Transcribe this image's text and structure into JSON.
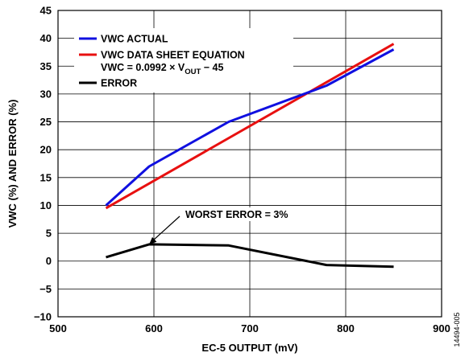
{
  "chart_data": {
    "type": "line",
    "xlabel": "EC-5 OUTPUT (mV)",
    "ylabel": "VWC (%) AND ERROR (%)",
    "xlim": [
      500,
      900
    ],
    "ylim": [
      -10,
      45
    ],
    "xticks": [
      500,
      600,
      700,
      800,
      900
    ],
    "yticks": [
      -10,
      -5,
      0,
      5,
      10,
      15,
      20,
      25,
      30,
      35,
      40,
      45
    ],
    "grid": true,
    "legend_placement": "top-left",
    "series": [
      {
        "name": "VWC ACTUAL",
        "color": "#1010e0",
        "x": [
          550,
          595,
          678,
          780,
          850
        ],
        "y": [
          10,
          17,
          25,
          31.5,
          38
        ]
      },
      {
        "name": "VWC DATA SHEET EQUATION",
        "subtitle_parts": [
          "VWC = 0.0992 × V",
          "OUT",
          " − 45"
        ],
        "color": "#e81010",
        "x": [
          550,
          850
        ],
        "y": [
          9.5,
          39
        ]
      },
      {
        "name": "ERROR",
        "color": "#000000",
        "x": [
          550,
          595,
          678,
          780,
          850
        ],
        "y": [
          0.7,
          3,
          2.8,
          -0.7,
          -1
        ]
      }
    ],
    "annotations": [
      {
        "text": "WORST ERROR = 3%",
        "target_x": 595,
        "target_y": 3
      }
    ],
    "figure_id": "14494-005"
  }
}
